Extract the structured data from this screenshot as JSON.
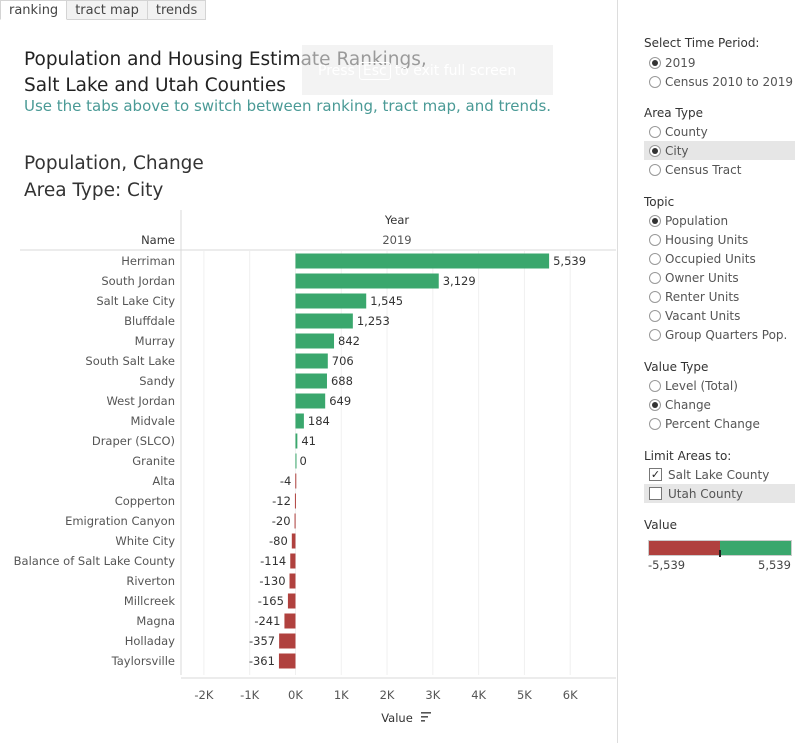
{
  "tabs": [
    {
      "label": "ranking",
      "active": true
    },
    {
      "label": "tract map",
      "active": false
    },
    {
      "label": "trends",
      "active": false
    }
  ],
  "overlay": {
    "press": "Press",
    "key": "Esc",
    "rest": "to exit full screen"
  },
  "header": {
    "title_line1": "Population and Housing Estimate Rankings,",
    "title_line2": "Salt Lake and Utah Counties",
    "subtitle": "Use the tabs above to switch between ranking, tract map, and trends."
  },
  "chart_header": {
    "line1": "Population, Change",
    "line2": "Area Type: City"
  },
  "chart_data": {
    "type": "bar",
    "orientation": "horizontal",
    "column_header": "Year",
    "column_value": "2019",
    "row_header": "Name",
    "xlabel": "Value",
    "xlim": [
      -2500,
      7000
    ],
    "xticks": [
      "-2K",
      "-1K",
      "0K",
      "1K",
      "2K",
      "3K",
      "4K",
      "5K",
      "6K"
    ],
    "xtick_values": [
      -2000,
      -1000,
      0,
      1000,
      2000,
      3000,
      4000,
      5000,
      6000
    ],
    "positive_color": "#3aa76d",
    "negative_color": "#b0413e",
    "categories": [
      "Herriman",
      "South Jordan",
      "Salt Lake City",
      "Bluffdale",
      "Murray",
      "South Salt Lake",
      "Sandy",
      "West Jordan",
      "Midvale",
      "Draper (SLCO)",
      "Granite",
      "Alta",
      "Copperton",
      "Emigration Canyon",
      "White City",
      "Balance of Salt Lake County",
      "Riverton",
      "Millcreek",
      "Magna",
      "Holladay",
      "Taylorsville"
    ],
    "values": [
      5539,
      3129,
      1545,
      1253,
      842,
      706,
      688,
      649,
      184,
      41,
      0,
      -4,
      -12,
      -20,
      -80,
      -114,
      -130,
      -165,
      -241,
      -357,
      -361
    ],
    "value_labels": [
      "5,539",
      "3,129",
      "1,545",
      "1,253",
      "842",
      "706",
      "688",
      "649",
      "184",
      "41",
      "0",
      "-4",
      "-12",
      "-20",
      "-80",
      "-114",
      "-130",
      "-165",
      "-241",
      "-357",
      "-361"
    ]
  },
  "filters": {
    "time_period": {
      "title": "Select Time Period:",
      "options": [
        {
          "label": "2019",
          "selected": true
        },
        {
          "label": "Census 2010 to 2019",
          "selected": false
        }
      ]
    },
    "area_type": {
      "title": "Area Type",
      "options": [
        {
          "label": "County",
          "selected": false
        },
        {
          "label": "City",
          "selected": true
        },
        {
          "label": "Census Tract",
          "selected": false
        }
      ]
    },
    "topic": {
      "title": "Topic",
      "options": [
        {
          "label": "Population",
          "selected": true
        },
        {
          "label": "Housing Units",
          "selected": false
        },
        {
          "label": "Occupied Units",
          "selected": false
        },
        {
          "label": "Owner Units",
          "selected": false
        },
        {
          "label": "Renter Units",
          "selected": false
        },
        {
          "label": "Vacant Units",
          "selected": false
        },
        {
          "label": "Group Quarters Pop.",
          "selected": false
        }
      ]
    },
    "value_type": {
      "title": "Value Type",
      "options": [
        {
          "label": "Level (Total)",
          "selected": false
        },
        {
          "label": "Change",
          "selected": true
        },
        {
          "label": "Percent Change",
          "selected": false
        }
      ]
    },
    "limit_areas": {
      "title": "Limit Areas to:",
      "options": [
        {
          "label": "Salt Lake County",
          "checked": true
        },
        {
          "label": "Utah County",
          "checked": false
        }
      ]
    }
  },
  "legend": {
    "title": "Value",
    "min_label": "-5,539",
    "max_label": "5,539",
    "min": -5539,
    "max": 5539,
    "marker": 0
  }
}
